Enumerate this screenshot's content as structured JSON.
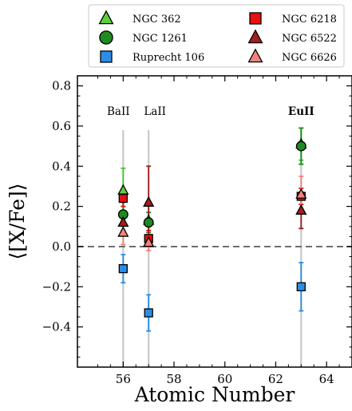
{
  "chart_data": {
    "type": "scatter",
    "xlabel": "Atomic Number",
    "ylabel": "⟨[X/Fe]⟩",
    "xlim": [
      54.2,
      65
    ],
    "ylim": [
      -0.6,
      0.85
    ],
    "x_ticks": [
      56,
      58,
      60,
      62,
      64
    ],
    "y_ticks": [
      -0.4,
      -0.2,
      0.0,
      0.2,
      0.4,
      0.6,
      0.8
    ],
    "x_tick_labels": [
      "56",
      "58",
      "60",
      "62",
      "64"
    ],
    "y_tick_labels": [
      "−0.4",
      "−0.2",
      "0.0",
      "0.2",
      "0.4",
      "0.6",
      "0.8"
    ],
    "reference_line_y": 0.0,
    "element_markers": [
      {
        "label": "BaII",
        "x": 56,
        "bold": false
      },
      {
        "label": "LaII",
        "x": 57,
        "bold": false
      },
      {
        "label": "EuII",
        "x": 63,
        "bold": true
      }
    ],
    "legend_position": "top, outside plot",
    "series": [
      {
        "name": "NGC 362",
        "marker": "triangle",
        "color": "#5ad03a",
        "err_color": "#3ccc2a",
        "points": [
          {
            "x": 56,
            "y": 0.28,
            "err": 0.11
          },
          {
            "x": 57,
            "y": 0.13,
            "err": 0.08
          },
          {
            "x": 63,
            "y": 0.51,
            "err": 0.08
          }
        ]
      },
      {
        "name": "NGC 1261",
        "marker": "circle",
        "color": "#1f8a1f",
        "err_color": "#1f8a1f",
        "points": [
          {
            "x": 56,
            "y": 0.16,
            "err": 0.08
          },
          {
            "x": 57,
            "y": 0.12,
            "err": 0.05
          },
          {
            "x": 63,
            "y": 0.5,
            "err": 0.09
          }
        ]
      },
      {
        "name": "Ruprecht 106",
        "marker": "square",
        "color": "#2b8ee6",
        "err_color": "#2b8ee6",
        "points": [
          {
            "x": 56,
            "y": -0.11,
            "err": 0.07
          },
          {
            "x": 57,
            "y": -0.33,
            "err": 0.09
          },
          {
            "x": 63,
            "y": -0.2,
            "err": 0.12
          }
        ]
      },
      {
        "name": "NGC 6218",
        "marker": "square",
        "color": "#e81010",
        "err_color": "#e81010",
        "points": [
          {
            "x": 56,
            "y": 0.24,
            "err": 0.04
          },
          {
            "x": 57,
            "y": 0.04,
            "err": 0.04
          },
          {
            "x": 63,
            "y": 0.25,
            "err": 0.04
          }
        ]
      },
      {
        "name": "NGC 6522",
        "marker": "triangle",
        "color": "#a01f1f",
        "err_color": "#a01f1f",
        "points": [
          {
            "x": 56,
            "y": 0.12,
            "err": 0.04
          },
          {
            "x": 57,
            "y": 0.22,
            "err": 0.18
          },
          {
            "x": 63,
            "y": 0.18,
            "err": 0.09
          }
        ]
      },
      {
        "name": "NGC 6626",
        "marker": "triangle",
        "color": "#f2837a",
        "err_color": "#f2837a",
        "points": [
          {
            "x": 56,
            "y": 0.07,
            "err": 0.06
          },
          {
            "x": 57,
            "y": 0.02,
            "err": 0.04
          },
          {
            "x": 63,
            "y": 0.26,
            "err": 0.09
          }
        ]
      }
    ]
  }
}
